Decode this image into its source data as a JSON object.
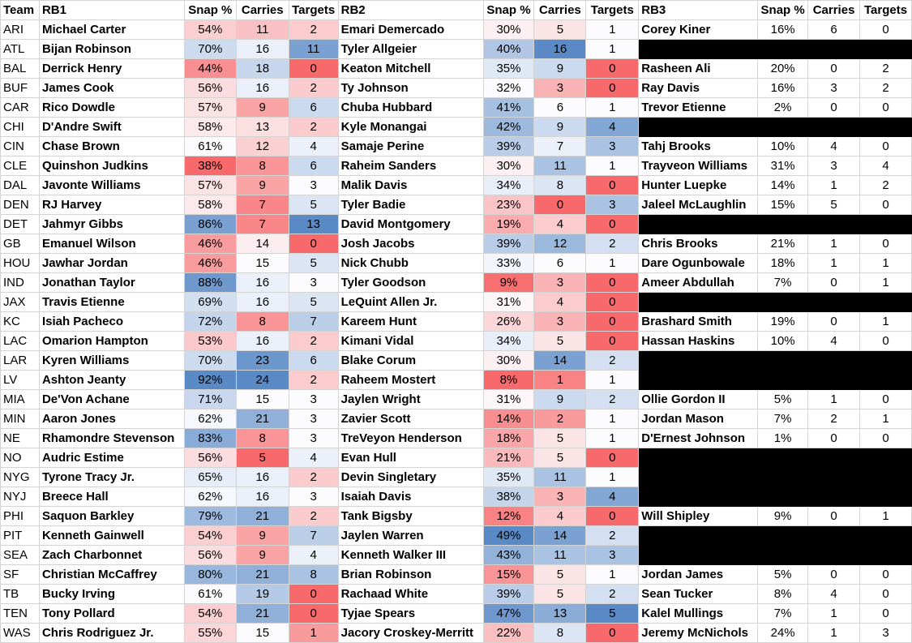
{
  "headers": [
    "Team",
    "RB1",
    "Snap %",
    "Carries",
    "Targets",
    "RB2",
    "Snap %",
    "Carries",
    "Targets",
    "RB3",
    "Snap %",
    "Carries",
    "Targets"
  ],
  "rows": [
    {
      "team": "ARI",
      "rb1": [
        "Michael Carter",
        "54%",
        "11",
        "2"
      ],
      "rb2": [
        "Emari Demercado",
        "30%",
        "5",
        "1"
      ],
      "rb3": [
        "Corey Kiner",
        "16%",
        "6",
        "0"
      ]
    },
    {
      "team": "ATL",
      "rb1": [
        "Bijan Robinson",
        "70%",
        "16",
        "11"
      ],
      "rb2": [
        "Tyler Allgeier",
        "40%",
        "16",
        "1"
      ],
      "rb3": null
    },
    {
      "team": "BAL",
      "rb1": [
        "Derrick Henry",
        "44%",
        "18",
        "0"
      ],
      "rb2": [
        "Keaton Mitchell",
        "35%",
        "9",
        "0"
      ],
      "rb3": [
        "Rasheen Ali",
        "20%",
        "0",
        "2"
      ]
    },
    {
      "team": "BUF",
      "rb1": [
        "James Cook",
        "56%",
        "16",
        "2"
      ],
      "rb2": [
        "Ty Johnson",
        "32%",
        "3",
        "0"
      ],
      "rb3": [
        "Ray Davis",
        "16%",
        "3",
        "2"
      ]
    },
    {
      "team": "CAR",
      "rb1": [
        "Rico Dowdle",
        "57%",
        "9",
        "6"
      ],
      "rb2": [
        "Chuba Hubbard",
        "41%",
        "6",
        "1"
      ],
      "rb3": [
        "Trevor Etienne",
        "2%",
        "0",
        "0"
      ]
    },
    {
      "team": "CHI",
      "rb1": [
        "D'Andre Swift",
        "58%",
        "13",
        "2"
      ],
      "rb2": [
        "Kyle Monangai",
        "42%",
        "9",
        "4"
      ],
      "rb3": null
    },
    {
      "team": "CIN",
      "rb1": [
        "Chase Brown",
        "61%",
        "12",
        "4"
      ],
      "rb2": [
        "Samaje Perine",
        "39%",
        "7",
        "3"
      ],
      "rb3": [
        "Tahj Brooks",
        "10%",
        "4",
        "0"
      ]
    },
    {
      "team": "CLE",
      "rb1": [
        "Quinshon Judkins",
        "38%",
        "8",
        "6"
      ],
      "rb2": [
        "Raheim Sanders",
        "30%",
        "11",
        "1"
      ],
      "rb3": [
        "Trayveon Williams",
        "31%",
        "3",
        "4"
      ]
    },
    {
      "team": "DAL",
      "rb1": [
        "Javonte Williams",
        "57%",
        "9",
        "3"
      ],
      "rb2": [
        "Malik Davis",
        "34%",
        "8",
        "0"
      ],
      "rb3": [
        "Hunter Luepke",
        "14%",
        "1",
        "2"
      ]
    },
    {
      "team": "DEN",
      "rb1": [
        "RJ Harvey",
        "58%",
        "7",
        "5"
      ],
      "rb2": [
        "Tyler Badie",
        "23%",
        "0",
        "3"
      ],
      "rb3": [
        "Jaleel McLaughlin",
        "15%",
        "5",
        "0"
      ]
    },
    {
      "team": "DET",
      "rb1": [
        "Jahmyr Gibbs",
        "86%",
        "7",
        "13"
      ],
      "rb2": [
        "David Montgomery",
        "19%",
        "4",
        "0"
      ],
      "rb3": null
    },
    {
      "team": "GB",
      "rb1": [
        "Emanuel Wilson",
        "46%",
        "14",
        "0"
      ],
      "rb2": [
        "Josh Jacobs",
        "39%",
        "12",
        "2"
      ],
      "rb3": [
        "Chris Brooks",
        "21%",
        "1",
        "0"
      ]
    },
    {
      "team": "HOU",
      "rb1": [
        "Jawhar Jordan",
        "46%",
        "15",
        "5"
      ],
      "rb2": [
        "Nick Chubb",
        "33%",
        "6",
        "1"
      ],
      "rb3": [
        "Dare Ogunbowale",
        "18%",
        "1",
        "1"
      ]
    },
    {
      "team": "IND",
      "rb1": [
        "Jonathan Taylor",
        "88%",
        "16",
        "3"
      ],
      "rb2": [
        "Tyler Goodson",
        "9%",
        "3",
        "0"
      ],
      "rb3": [
        "Ameer Abdullah",
        "7%",
        "0",
        "1"
      ]
    },
    {
      "team": "JAX",
      "rb1": [
        "Travis Etienne",
        "69%",
        "16",
        "5"
      ],
      "rb2": [
        "LeQuint Allen Jr.",
        "31%",
        "4",
        "0"
      ],
      "rb3": null
    },
    {
      "team": "KC",
      "rb1": [
        "Isiah Pacheco",
        "72%",
        "8",
        "7"
      ],
      "rb2": [
        "Kareem Hunt",
        "26%",
        "3",
        "0"
      ],
      "rb3": [
        "Brashard Smith",
        "19%",
        "0",
        "1"
      ]
    },
    {
      "team": "LAC",
      "rb1": [
        "Omarion Hampton",
        "53%",
        "16",
        "2"
      ],
      "rb2": [
        "Kimani Vidal",
        "34%",
        "5",
        "0"
      ],
      "rb3": [
        "Hassan Haskins",
        "10%",
        "4",
        "0"
      ]
    },
    {
      "team": "LAR",
      "rb1": [
        "Kyren Williams",
        "70%",
        "23",
        "6"
      ],
      "rb2": [
        "Blake Corum",
        "30%",
        "14",
        "2"
      ],
      "rb3": null
    },
    {
      "team": "LV",
      "rb1": [
        "Ashton Jeanty",
        "92%",
        "24",
        "2"
      ],
      "rb2": [
        "Raheem Mostert",
        "8%",
        "1",
        "1"
      ],
      "rb3": null
    },
    {
      "team": "MIA",
      "rb1": [
        "De'Von Achane",
        "71%",
        "15",
        "3"
      ],
      "rb2": [
        "Jaylen Wright",
        "31%",
        "9",
        "2"
      ],
      "rb3": [
        "Ollie Gordon II",
        "5%",
        "1",
        "0"
      ]
    },
    {
      "team": "MIN",
      "rb1": [
        "Aaron Jones",
        "62%",
        "21",
        "3"
      ],
      "rb2": [
        "Zavier Scott",
        "14%",
        "2",
        "1"
      ],
      "rb3": [
        "Jordan Mason",
        "7%",
        "2",
        "1"
      ]
    },
    {
      "team": "NE",
      "rb1": [
        "Rhamondre Stevenson",
        "83%",
        "8",
        "3"
      ],
      "rb2": [
        "TreVeyon Henderson",
        "18%",
        "5",
        "1"
      ],
      "rb3": [
        "D'Ernest Johnson",
        "1%",
        "0",
        "0"
      ]
    },
    {
      "team": "NO",
      "rb1": [
        "Audric Estime",
        "56%",
        "5",
        "4"
      ],
      "rb2": [
        "Evan Hull",
        "21%",
        "5",
        "0"
      ],
      "rb3": null
    },
    {
      "team": "NYG",
      "rb1": [
        "Tyrone Tracy Jr.",
        "65%",
        "16",
        "2"
      ],
      "rb2": [
        "Devin Singletary",
        "35%",
        "11",
        "1"
      ],
      "rb3": null
    },
    {
      "team": "NYJ",
      "rb1": [
        "Breece Hall",
        "62%",
        "16",
        "3"
      ],
      "rb2": [
        "Isaiah Davis",
        "38%",
        "3",
        "4"
      ],
      "rb3": null
    },
    {
      "team": "PHI",
      "rb1": [
        "Saquon Barkley",
        "79%",
        "21",
        "2"
      ],
      "rb2": [
        "Tank Bigsby",
        "12%",
        "4",
        "0"
      ],
      "rb3": [
        "Will Shipley",
        "9%",
        "0",
        "1"
      ]
    },
    {
      "team": "PIT",
      "rb1": [
        "Kenneth Gainwell",
        "54%",
        "9",
        "7"
      ],
      "rb2": [
        "Jaylen Warren",
        "49%",
        "14",
        "2"
      ],
      "rb3": null
    },
    {
      "team": "SEA",
      "rb1": [
        "Zach Charbonnet",
        "56%",
        "9",
        "4"
      ],
      "rb2": [
        "Kenneth Walker III",
        "43%",
        "11",
        "3"
      ],
      "rb3": null
    },
    {
      "team": "SF",
      "rb1": [
        "Christian McCaffrey",
        "80%",
        "21",
        "8"
      ],
      "rb2": [
        "Brian Robinson",
        "15%",
        "5",
        "1"
      ],
      "rb3": [
        "Jordan James",
        "5%",
        "0",
        "0"
      ]
    },
    {
      "team": "TB",
      "rb1": [
        "Bucky Irving",
        "61%",
        "19",
        "0"
      ],
      "rb2": [
        "Rachaad White",
        "39%",
        "5",
        "2"
      ],
      "rb3": [
        "Sean Tucker",
        "8%",
        "4",
        "0"
      ]
    },
    {
      "team": "TEN",
      "rb1": [
        "Tony Pollard",
        "54%",
        "21",
        "0"
      ],
      "rb2": [
        "Tyjae Spears",
        "47%",
        "13",
        "5"
      ],
      "rb3": [
        "Kalel Mullings",
        "7%",
        "1",
        "0"
      ]
    },
    {
      "team": "WAS",
      "rb1": [
        "Chris Rodriguez Jr.",
        "55%",
        "15",
        "1"
      ],
      "rb2": [
        "Jacory Croskey-Merritt",
        "22%",
        "8",
        "0"
      ],
      "rb3": [
        "Jeremy McNichols",
        "24%",
        "1",
        "3"
      ]
    }
  ],
  "colors": {
    "high": "#5a8ac6",
    "mid": "#fcfcff",
    "low": "#f8696b"
  }
}
